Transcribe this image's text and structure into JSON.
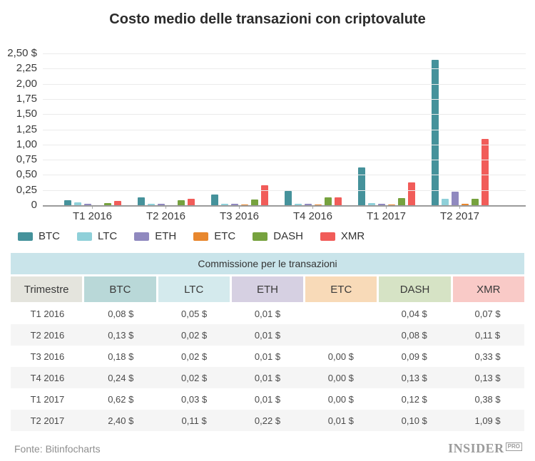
{
  "chart": {
    "title": "Costo medio delle transazioni con criptovalute",
    "y_ticks": [
      "2,50 $",
      "2,25",
      "2,00",
      "1,75",
      "1,50",
      "1,25",
      "1,00",
      "0,75",
      "0,50",
      "0,25",
      "0"
    ]
  },
  "chart_data": {
    "type": "bar",
    "title": "Costo medio delle transazioni con criptovalute",
    "categories": [
      "T1 2016",
      "T2 2016",
      "T3 2016",
      "T4 2016",
      "T1 2017",
      "T2 2017"
    ],
    "series": [
      {
        "name": "BTC",
        "color": "#45929b",
        "values": [
          0.08,
          0.13,
          0.18,
          0.24,
          0.62,
          2.4
        ]
      },
      {
        "name": "LTC",
        "color": "#8fd0d9",
        "values": [
          0.05,
          0.02,
          0.02,
          0.02,
          0.03,
          0.11
        ]
      },
      {
        "name": "ETH",
        "color": "#9089bf",
        "values": [
          0.01,
          0.01,
          0.01,
          0.01,
          0.01,
          0.22
        ]
      },
      {
        "name": "ETC",
        "color": "#e8872e",
        "values": [
          null,
          null,
          0.0,
          0.0,
          0.0,
          0.01
        ]
      },
      {
        "name": "DASH",
        "color": "#76a23e",
        "values": [
          0.04,
          0.08,
          0.09,
          0.13,
          0.12,
          0.1
        ]
      },
      {
        "name": "XMR",
        "color": "#f15c59",
        "values": [
          0.07,
          0.11,
          0.33,
          0.13,
          0.38,
          1.09
        ]
      }
    ],
    "ylim": [
      0,
      2.5
    ],
    "y_tick_step": 0.25,
    "grid": true,
    "legend_position": "bottom",
    "currency": "$"
  },
  "table": {
    "title": "Commissione per le transazioni",
    "columns": [
      {
        "label": "Trimestre",
        "bg": "#e4e4dd"
      },
      {
        "label": "BTC",
        "bg": "#b9d8d8"
      },
      {
        "label": "LTC",
        "bg": "#d4eaed"
      },
      {
        "label": "ETH",
        "bg": "#d6d0e2"
      },
      {
        "label": "ETC",
        "bg": "#f8dab8"
      },
      {
        "label": "DASH",
        "bg": "#d6e3c5"
      },
      {
        "label": "XMR",
        "bg": "#f9cac7"
      }
    ],
    "rows": [
      {
        "label": "T1 2016",
        "cells": [
          "0,08 $",
          "0,05 $",
          "0,01 $",
          "",
          "0,04 $",
          "0,07 $"
        ]
      },
      {
        "label": "T2 2016",
        "cells": [
          "0,13 $",
          "0,02 $",
          "0,01 $",
          "",
          "0,08 $",
          "0,11 $"
        ]
      },
      {
        "label": "T3 2016",
        "cells": [
          "0,18 $",
          "0,02 $",
          "0,01 $",
          "0,00 $",
          "0,09 $",
          "0,33 $"
        ]
      },
      {
        "label": "T4 2016",
        "cells": [
          "0,24 $",
          "0,02 $",
          "0,01 $",
          "0,00 $",
          "0,13 $",
          "0,13 $"
        ]
      },
      {
        "label": "T1 2017",
        "cells": [
          "0,62 $",
          "0,03 $",
          "0,01 $",
          "0,00 $",
          "0,12 $",
          "0,38 $"
        ]
      },
      {
        "label": "T2 2017",
        "cells": [
          "2,40 $",
          "0,11 $",
          "0,22 $",
          "0,01 $",
          "0,10 $",
          "1,09 $"
        ]
      }
    ]
  },
  "footer": {
    "source": "Fonte: Bitinfocharts",
    "logo_main": "INSIDER",
    "logo_sub": "PRO"
  }
}
